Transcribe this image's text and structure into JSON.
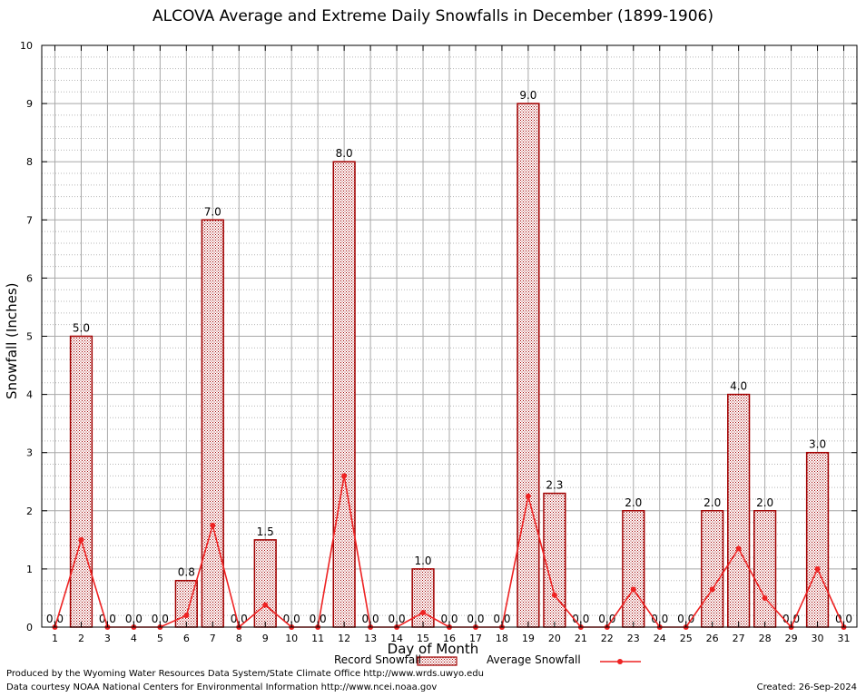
{
  "chart_data": {
    "type": "bar",
    "title": "ALCOVA Average and Extreme Daily Snowfalls in December (1899-1906)",
    "xlabel": "Day of Month",
    "ylabel": "Snowfall (Inches)",
    "ylim": [
      0,
      10
    ],
    "yticks": [
      "0",
      "1",
      "2",
      "3",
      "4",
      "5",
      "6",
      "7",
      "8",
      "9",
      "10"
    ],
    "categories": [
      "1",
      "2",
      "3",
      "4",
      "5",
      "6",
      "7",
      "8",
      "9",
      "10",
      "11",
      "12",
      "13",
      "14",
      "15",
      "16",
      "17",
      "18",
      "19",
      "20",
      "21",
      "22",
      "23",
      "24",
      "25",
      "26",
      "27",
      "28",
      "29",
      "30",
      "31"
    ],
    "series": [
      {
        "name": "Record Snowfall",
        "kind": "bar",
        "color": "#a00000",
        "values": [
          0,
          5.0,
          0,
          0,
          0,
          0.8,
          7.0,
          0,
          1.5,
          0,
          0,
          8.0,
          0,
          0,
          1.0,
          0,
          0,
          0,
          9.0,
          2.3,
          0,
          0,
          2.0,
          0,
          0,
          2.0,
          4.0,
          2.0,
          0,
          3.0,
          0
        ],
        "labels": [
          "0.0",
          "5.0",
          "0.0",
          "0.0",
          "0.0",
          "0.8",
          "7.0",
          "0.0",
          "1.5",
          "0.0",
          "0.0",
          "8.0",
          "0.0",
          "0.0",
          "1.0",
          "0.0",
          "0.0",
          "0.0",
          "9.0",
          "2.3",
          "0.0",
          "0.0",
          "2.0",
          "0.0",
          "0.0",
          "2.0",
          "4.0",
          "2.0",
          "0.0",
          "3.0",
          "0.0"
        ]
      },
      {
        "name": "Average Snowfall",
        "kind": "line",
        "color": "#ee2222",
        "values": [
          0,
          1.5,
          0,
          0,
          0,
          0.2,
          1.75,
          0,
          0.38,
          0,
          0,
          2.6,
          0,
          0,
          0.25,
          0,
          0,
          0,
          2.25,
          0.55,
          0,
          0,
          0.65,
          0,
          0,
          0.65,
          1.35,
          0.5,
          0,
          1.0,
          0
        ]
      }
    ],
    "grid": true,
    "legend_position": "bottom"
  },
  "footer": {
    "produced_by": "Produced by the Wyoming Water Resources Data System/State Climate Office http://www.wrds.uwyo.edu",
    "courtesy": "Data courtesy NOAA National Centers for Environmental Information http://www.ncei.noaa.gov",
    "created": "Created:  26-Sep-2024"
  }
}
